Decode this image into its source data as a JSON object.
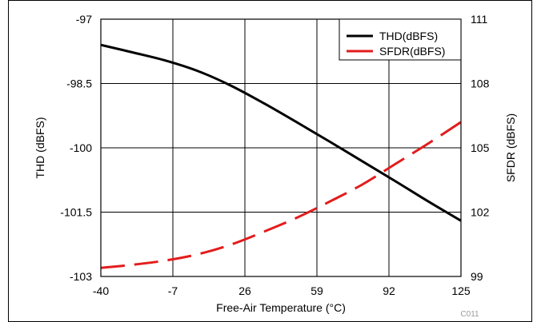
{
  "chart_data": {
    "type": "line",
    "title": "",
    "xlabel": "Free-Air Temperature (°C)",
    "ylabel_left": "THD (dBFS)",
    "ylabel_right": "SFDR (dBFS)",
    "x_ticks": [
      "-40",
      "-7",
      "26",
      "59",
      "92",
      "125"
    ],
    "y_left_ticks": [
      "-97",
      "-98.5",
      "-100",
      "-101.5",
      "-103"
    ],
    "y_right_ticks": [
      "111",
      "108",
      "105",
      "102",
      "99"
    ],
    "xlim": [
      -40,
      125
    ],
    "ylim_left": [
      -103,
      -97
    ],
    "ylim_right": [
      99,
      111
    ],
    "grid": true,
    "legend_position": "top-right",
    "figure_code": "C011",
    "series": [
      {
        "name": "THD(dBFS)",
        "axis": "left",
        "color": "#000000",
        "style": "solid",
        "x": [
          -40,
          -25,
          -10,
          5,
          20,
          35,
          50,
          65,
          80,
          95,
          110,
          125
        ],
        "y": [
          -97.6,
          -97.78,
          -97.97,
          -98.22,
          -98.56,
          -98.97,
          -99.41,
          -99.86,
          -100.32,
          -100.78,
          -101.25,
          -101.7
        ]
      },
      {
        "name": "SFDR(dBFS)",
        "axis": "right",
        "color": "#e31c1c",
        "style": "dashed",
        "x": [
          -40,
          -25,
          -10,
          5,
          20,
          35,
          50,
          65,
          80,
          95,
          110,
          125
        ],
        "y": [
          99.4,
          99.55,
          99.75,
          100.05,
          100.5,
          101.1,
          101.75,
          102.5,
          103.3,
          104.25,
          105.2,
          106.2
        ]
      }
    ]
  }
}
